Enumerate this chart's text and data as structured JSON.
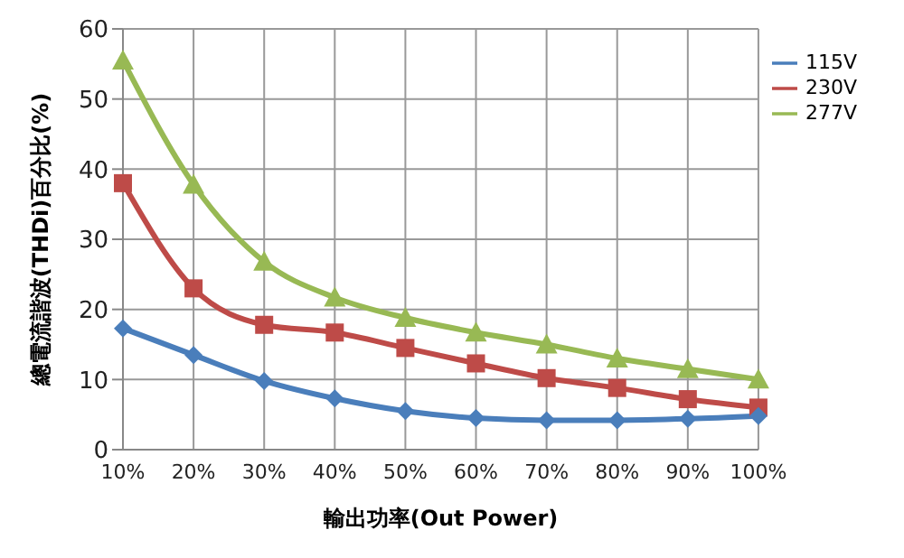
{
  "chart_data": {
    "type": "line",
    "xlabel": "輸出功率(Out Power)",
    "ylabel": "總電流諧波(THDi)百分比(%)",
    "categories": [
      "10%",
      "20%",
      "30%",
      "40%",
      "50%",
      "60%",
      "70%",
      "80%",
      "90%",
      "100%"
    ],
    "series": [
      {
        "name": "115V",
        "color": "#4a7ebb",
        "marker": "diamond",
        "values": [
          17.3,
          13.5,
          9.8,
          7.3,
          5.5,
          4.5,
          4.2,
          4.2,
          4.4,
          4.8
        ]
      },
      {
        "name": "230V",
        "color": "#be4b48",
        "marker": "square",
        "values": [
          38,
          23,
          17.8,
          16.7,
          14.5,
          12.3,
          10.2,
          8.8,
          7.2,
          6
        ]
      },
      {
        "name": "277V",
        "color": "#98b954",
        "marker": "triangle",
        "values": [
          55.5,
          37.8,
          26.8,
          21.7,
          18.8,
          16.7,
          15,
          13,
          11.5,
          10
        ]
      }
    ],
    "ylim": [
      0,
      60
    ],
    "yticks": [
      0,
      10,
      20,
      30,
      40,
      50,
      60
    ],
    "grid": true,
    "legend": "right",
    "line_style": "solid"
  }
}
